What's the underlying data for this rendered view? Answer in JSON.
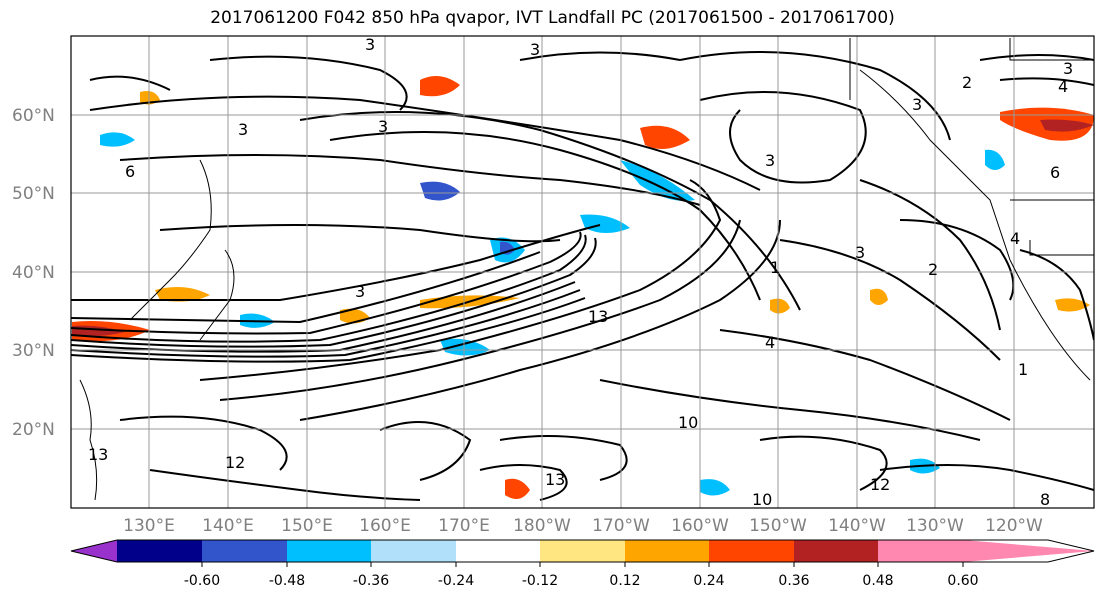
{
  "title": "2017061200 F042 850 hPa qvapor, IVT Landfall PC (2017061500 - 2017061700)",
  "map": {
    "lat_labels": [
      "60°N",
      "50°N",
      "40°N",
      "30°N",
      "20°N"
    ],
    "lon_labels": [
      "130°E",
      "140°E",
      "150°E",
      "160°E",
      "170°E",
      "180°W",
      "170°W",
      "160°W",
      "150°W",
      "140°W",
      "130°W",
      "120°W"
    ],
    "contour_labels": [
      "3",
      "6",
      "3",
      "3",
      "3",
      "2",
      "3",
      "4",
      "3",
      "3",
      "3",
      "6",
      "1",
      "3",
      "4",
      "13",
      "4",
      "2",
      "1",
      "12",
      "13",
      "10",
      "10",
      "13",
      "8",
      "12"
    ]
  },
  "colorbar": {
    "ticks": [
      "-0.60",
      "-0.48",
      "-0.36",
      "-0.24",
      "-0.12",
      "0.12",
      "0.24",
      "0.36",
      "0.48",
      "0.60"
    ],
    "colors": [
      "#9932cc",
      "#00008b",
      "#3355cc",
      "#00bfff",
      "#b0e0fa",
      "#ffffff",
      "#ffe680",
      "#ffa500",
      "#ff4500",
      "#b22222",
      "#ff88b0"
    ]
  }
}
